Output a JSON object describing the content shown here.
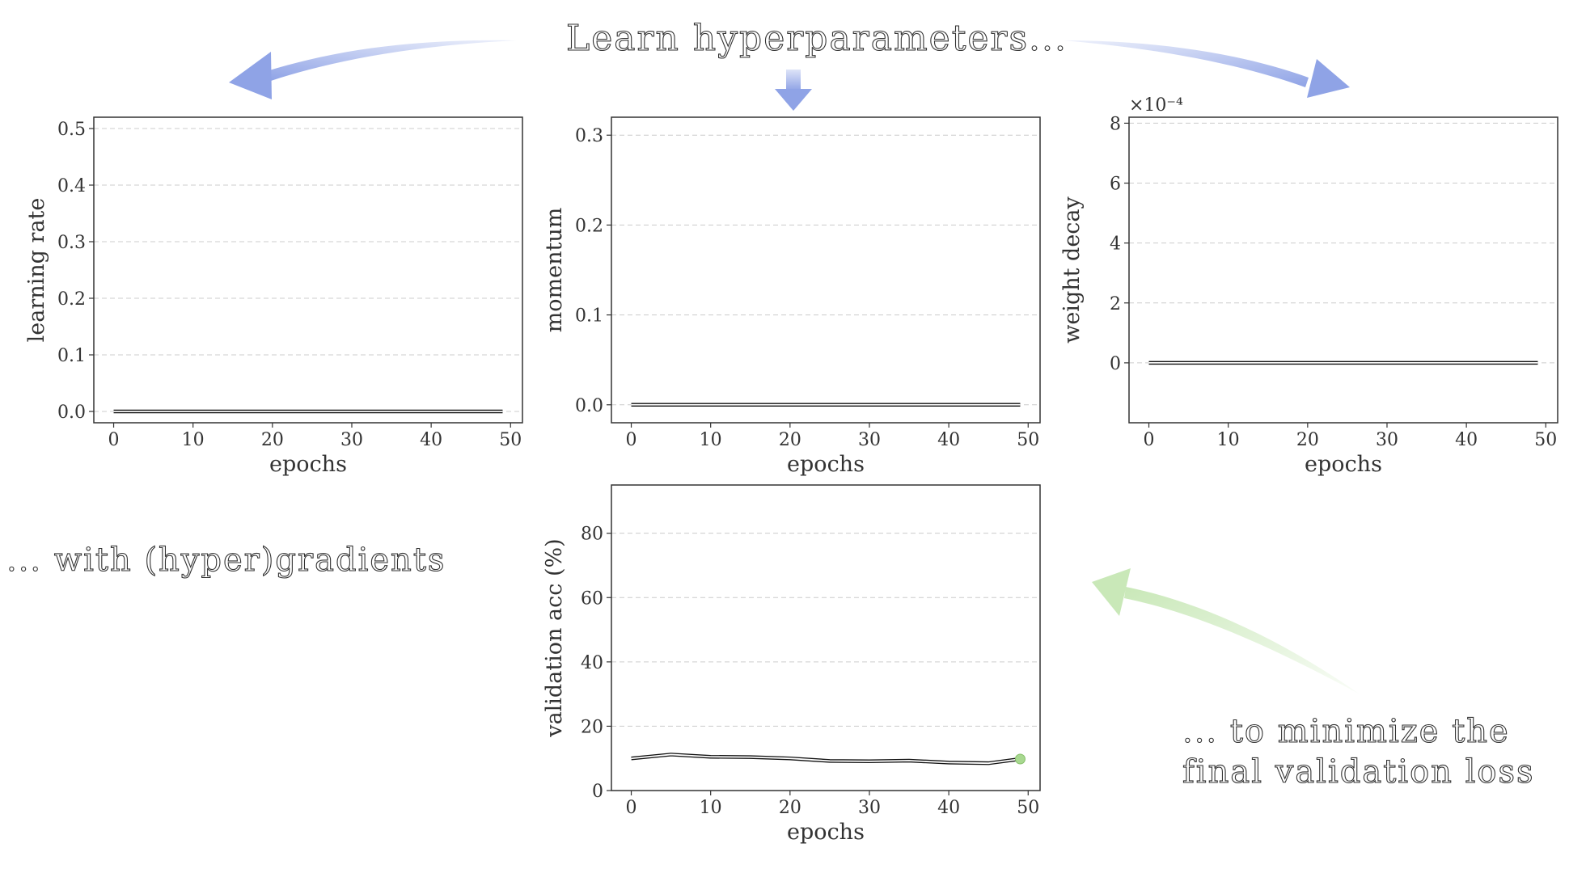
{
  "header": {
    "title": "Learn hyperparameters...",
    "caption_left": "... with (hyper)gradients",
    "caption_right_line1": "... to minimize the",
    "caption_right_line2": "final validation loss"
  },
  "colors": {
    "arrow_blue": "#8fa3e6",
    "arrow_green": "#c9e8b8",
    "final_marker": "#a8d890",
    "grid": "#cccccc"
  },
  "chart_data": [
    {
      "type": "line",
      "id": "lr",
      "xlabel": "epochs",
      "ylabel": "learning rate",
      "xlim": [
        -2.5,
        51.5
      ],
      "ylim": [
        -0.02,
        0.52
      ],
      "xticks": [
        0,
        10,
        20,
        30,
        40,
        50
      ],
      "yticks": [
        0.0,
        0.1,
        0.2,
        0.3,
        0.4,
        0.5
      ],
      "ytick_labels": [
        "0.0",
        "0.1",
        "0.2",
        "0.3",
        "0.4",
        "0.5"
      ],
      "grid": true,
      "series": [
        {
          "x": [
            0,
            49
          ],
          "y": [
            0.0,
            0.0
          ]
        }
      ]
    },
    {
      "type": "line",
      "id": "momentum",
      "xlabel": "epochs",
      "ylabel": "momentum",
      "xlim": [
        -2.5,
        51.5
      ],
      "ylim": [
        -0.02,
        0.32
      ],
      "xticks": [
        0,
        10,
        20,
        30,
        40,
        50
      ],
      "yticks": [
        0.0,
        0.1,
        0.2,
        0.3
      ],
      "ytick_labels": [
        "0.0",
        "0.1",
        "0.2",
        "0.3"
      ],
      "grid": true,
      "series": [
        {
          "x": [
            0,
            49
          ],
          "y": [
            0.0,
            0.0
          ]
        }
      ]
    },
    {
      "type": "line",
      "id": "wd",
      "xlabel": "epochs",
      "ylabel": "weight decay",
      "scale_label": "×10⁻⁴",
      "xlim": [
        -2.5,
        51.5
      ],
      "ylim": [
        -0.0002,
        0.00082
      ],
      "xticks": [
        0,
        10,
        20,
        30,
        40,
        50
      ],
      "yticks": [
        0,
        0.0002,
        0.0004,
        0.0006,
        0.0008
      ],
      "ytick_labels": [
        "0",
        "2",
        "4",
        "6",
        "8"
      ],
      "grid": true,
      "series": [
        {
          "x": [
            0,
            49
          ],
          "y": [
            0,
            0
          ]
        }
      ]
    },
    {
      "type": "line",
      "id": "val",
      "xlabel": "epochs",
      "ylabel": "validation acc (%)",
      "xlim": [
        -2.5,
        51.5
      ],
      "ylim": [
        0,
        95
      ],
      "xticks": [
        0,
        10,
        20,
        30,
        40,
        50
      ],
      "yticks": [
        0,
        20,
        40,
        60,
        80
      ],
      "ytick_labels": [
        "0",
        "20",
        "40",
        "60",
        "80"
      ],
      "grid": true,
      "series": [
        {
          "x": [
            0,
            5,
            10,
            15,
            20,
            25,
            30,
            35,
            40,
            45,
            49
          ],
          "y": [
            10.0,
            11.2,
            10.5,
            10.4,
            10.0,
            9.2,
            9.1,
            9.3,
            8.7,
            8.5,
            9.8
          ]
        }
      ],
      "final_point": {
        "x": 49,
        "y": 9.8
      }
    }
  ]
}
